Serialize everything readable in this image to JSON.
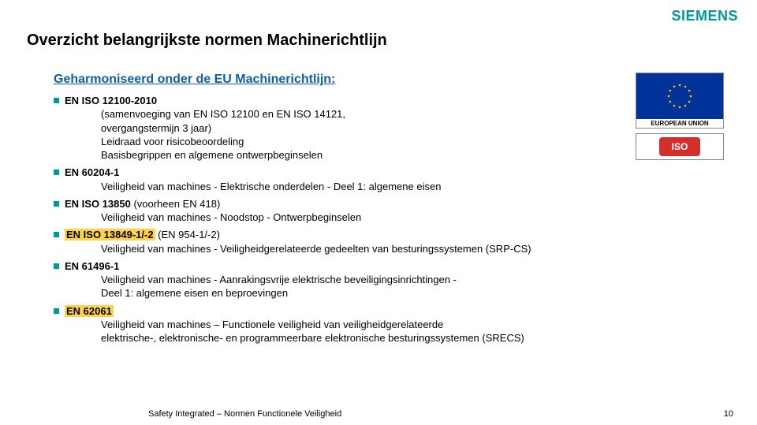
{
  "brand": {
    "name": "SIEMENS",
    "color": "#009999",
    "fontsize": 18
  },
  "title": {
    "text": "Overzicht belangrijkste normen Machinerichtlijn",
    "color": "#000000",
    "fontsize": 20
  },
  "subtitle": {
    "text": "Geharmoniseerd onder de EU Machinerichtlijn:",
    "color": "#0b5fae",
    "fontsize": 16
  },
  "bullet": {
    "color": "#009999",
    "size": 7
  },
  "highlight": {
    "bg": "#ffd24a"
  },
  "items": [
    {
      "norm": "EN ISO 12100-2010",
      "highlight": false,
      "lines": [
        "(samenvoeging van EN ISO 12100 en EN ISO 14121,",
        "overgangstermijn 3 jaar)",
        "Leidraad voor risicobeoordeling",
        "Basisbegrippen en algemene ontwerpbeginselen"
      ]
    },
    {
      "norm": "EN 60204-1",
      "highlight": false,
      "lines": [
        "Veiligheid van machines - Elektrische onderdelen - Deel 1: algemene eisen"
      ]
    },
    {
      "norm": "EN ISO 13850",
      "norm_suffix": " (voorheen EN 418)",
      "highlight": false,
      "lines": [
        "Veiligheid van machines  - Noodstop - Ontwerpbeginselen"
      ]
    },
    {
      "norm": "EN ISO 13849-1/-2",
      "norm_suffix": " (EN 954-1/-2)",
      "highlight": true,
      "lines": [
        "Veiligheid van machines - Veiligheidgerelateerde gedeelten van besturingssystemen (SRP-CS)"
      ]
    },
    {
      "norm": "EN 61496-1",
      "highlight": false,
      "lines": [
        "Veiligheid van machines - Aanrakingsvrije elektrische beveiligingsinrichtingen -",
        "Deel 1: algemene eisen en beproevingen"
      ]
    },
    {
      "norm": "EN 62061",
      "highlight": true,
      "lines": [
        "Veiligheid van machines – Functionele veiligheid van veiligheidgerelateerde",
        "elektrische-, elektronische- en programmeerbare elektronische besturingssystemen (SRECS)"
      ]
    }
  ],
  "images": {
    "eu": {
      "label": "EUROPEAN UNION",
      "flag_bg": "#003399",
      "star_color": "#ffcc00"
    },
    "iso": {
      "text": "ISO",
      "bg": "#d32f2f"
    }
  },
  "footer": {
    "text": "Safety Integrated – Normen Functionele Veiligheid",
    "page": "10"
  }
}
